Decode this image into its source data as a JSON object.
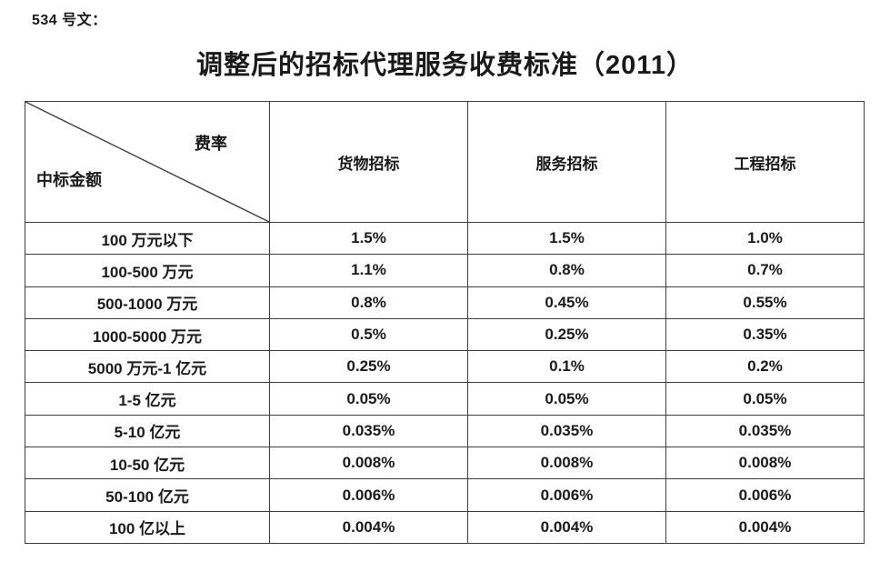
{
  "doc": {
    "note": "534 号文：",
    "title": "调整后的招标代理服务收费标准（2011）"
  },
  "table": {
    "corner": {
      "top_right": "费率",
      "bottom_left": "中标金额"
    },
    "columns": [
      "货物招标",
      "服务招标",
      "工程招标"
    ],
    "rows": [
      {
        "amount": "100 万元以下",
        "rates": [
          "1.5%",
          "1.5%",
          "1.0%"
        ]
      },
      {
        "amount": "100-500 万元",
        "rates": [
          "1.1%",
          "0.8%",
          "0.7%"
        ]
      },
      {
        "amount": "500-1000 万元",
        "rates": [
          "0.8%",
          "0.45%",
          "0.55%"
        ]
      },
      {
        "amount": "1000-5000 万元",
        "rates": [
          "0.5%",
          "0.25%",
          "0.35%"
        ]
      },
      {
        "amount": "5000 万元-1 亿元",
        "rates": [
          "0.25%",
          "0.1%",
          "0.2%"
        ]
      },
      {
        "amount": "1-5 亿元",
        "rates": [
          "0.05%",
          "0.05%",
          "0.05%"
        ]
      },
      {
        "amount": "5-10 亿元",
        "rates": [
          "0.035%",
          "0.035%",
          "0.035%"
        ]
      },
      {
        "amount": "10-50 亿元",
        "rates": [
          "0.008%",
          "0.008%",
          "0.008%"
        ]
      },
      {
        "amount": "50-100 亿元",
        "rates": [
          "0.006%",
          "0.006%",
          "0.006%"
        ]
      },
      {
        "amount": "100 亿以上",
        "rates": [
          "0.004%",
          "0.004%",
          "0.004%"
        ]
      }
    ]
  },
  "colors": {
    "text": "#1a1a1a",
    "border": "#3d3d3d",
    "background": "#ffffff"
  }
}
